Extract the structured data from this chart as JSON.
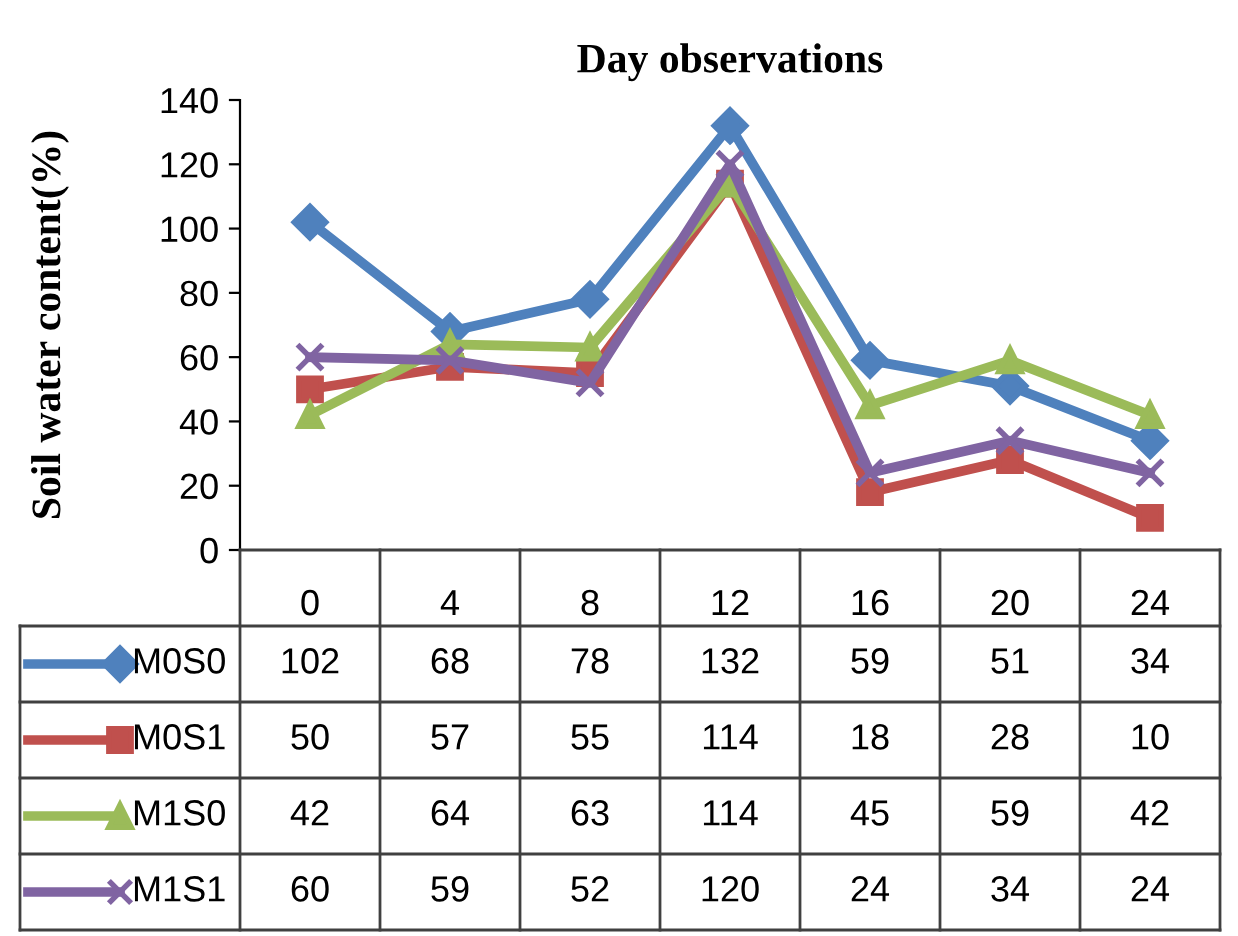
{
  "chart_data": {
    "type": "line",
    "title": "Day observations",
    "ylabel": "Soil water content(%)",
    "categories": [
      "0",
      "4",
      "8",
      "12",
      "16",
      "20",
      "24"
    ],
    "series": [
      {
        "name": "M0S0",
        "color": "#4f81bd",
        "marker": "diamond",
        "values": [
          102,
          68,
          78,
          132,
          59,
          51,
          34
        ]
      },
      {
        "name": "M0S1",
        "color": "#c0504d",
        "marker": "square",
        "values": [
          50,
          57,
          55,
          114,
          18,
          28,
          10
        ]
      },
      {
        "name": "M1S0",
        "color": "#9bbb59",
        "marker": "triangle",
        "values": [
          42,
          64,
          63,
          114,
          45,
          59,
          42
        ]
      },
      {
        "name": "M1S1",
        "color": "#8064a2",
        "marker": "cross",
        "values": [
          60,
          59,
          52,
          120,
          24,
          34,
          24
        ]
      }
    ],
    "ylim": [
      0,
      140
    ],
    "yticks": [
      0,
      20,
      40,
      60,
      80,
      100,
      120,
      140
    ],
    "grid": false,
    "legend": "bottom left",
    "data_labels": true
  }
}
